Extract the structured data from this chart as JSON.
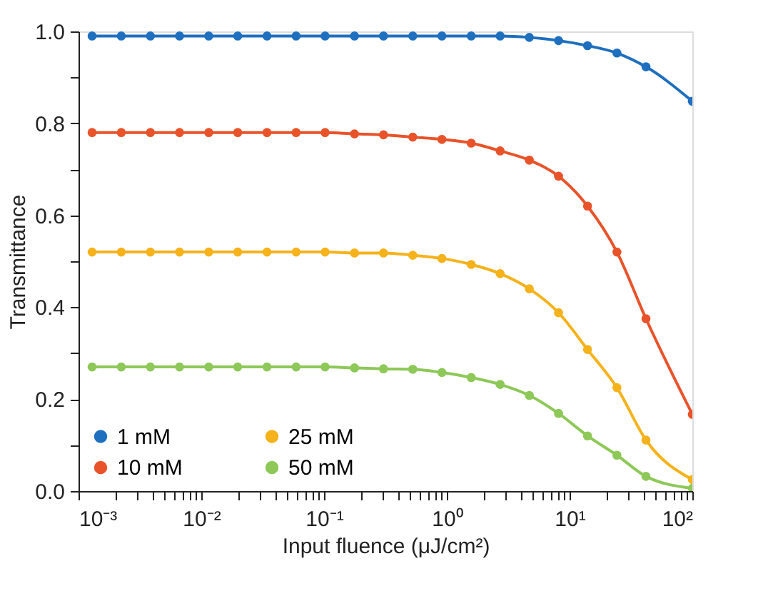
{
  "chart_data": {
    "type": "line",
    "xlabel": "Input fluence (μJ/cm²)",
    "ylabel": "Transmittance",
    "x": [
      0.00129,
      0.00223,
      0.00385,
      0.00665,
      0.0115,
      0.0198,
      0.0343,
      0.0592,
      0.102,
      0.177,
      0.305,
      0.528,
      0.912,
      1.58,
      2.72,
      4.7,
      8.13,
      14.0,
      24.3,
      41.9,
      100
    ],
    "series": [
      {
        "name": "1 mM",
        "color": "#1f6fbf",
        "values": [
          0.99,
          0.99,
          0.99,
          0.99,
          0.99,
          0.99,
          0.99,
          0.99,
          0.99,
          0.99,
          0.99,
          0.99,
          0.99,
          0.99,
          0.99,
          0.987,
          0.98,
          0.969,
          0.953,
          0.923,
          0.848
        ]
      },
      {
        "name": "10 mM",
        "color": "#e8532a",
        "values": [
          0.78,
          0.78,
          0.78,
          0.78,
          0.78,
          0.78,
          0.78,
          0.78,
          0.78,
          0.777,
          0.775,
          0.77,
          0.765,
          0.757,
          0.74,
          0.72,
          0.685,
          0.62,
          0.52,
          0.375,
          0.167
        ]
      },
      {
        "name": "25 mM",
        "color": "#f5b21b",
        "values": [
          0.52,
          0.52,
          0.52,
          0.52,
          0.52,
          0.52,
          0.52,
          0.52,
          0.52,
          0.518,
          0.518,
          0.513,
          0.506,
          0.493,
          0.473,
          0.44,
          0.388,
          0.308,
          0.225,
          0.111,
          0.025
        ]
      },
      {
        "name": "50 mM",
        "color": "#8dc858",
        "values": [
          0.27,
          0.27,
          0.27,
          0.27,
          0.27,
          0.27,
          0.27,
          0.27,
          0.27,
          0.268,
          0.266,
          0.265,
          0.258,
          0.247,
          0.232,
          0.208,
          0.169,
          0.12,
          0.078,
          0.032,
          0.006
        ]
      }
    ],
    "log": "x",
    "marker": "circle",
    "line_style": "solid",
    "grid": false,
    "legend": "bottom left",
    "xlim": [
      0.001,
      100
    ],
    "ylim": [
      0,
      1
    ],
    "xticks": [
      {
        "value": 0.001,
        "label": "10⁻³"
      },
      {
        "value": 0.002,
        "label": null
      },
      {
        "value": 0.003,
        "label": null
      },
      {
        "value": 0.004,
        "label": null
      },
      {
        "value": 0.005,
        "label": null
      },
      {
        "value": 0.006,
        "label": null
      },
      {
        "value": 0.007,
        "label": null
      },
      {
        "value": 0.008,
        "label": null
      },
      {
        "value": 0.009,
        "label": null
      },
      {
        "value": 0.01,
        "label": "10⁻²"
      },
      {
        "value": 0.02,
        "label": null
      },
      {
        "value": 0.03,
        "label": null
      },
      {
        "value": 0.04,
        "label": null
      },
      {
        "value": 0.05,
        "label": null
      },
      {
        "value": 0.06,
        "label": null
      },
      {
        "value": 0.07,
        "label": null
      },
      {
        "value": 0.08,
        "label": null
      },
      {
        "value": 0.09,
        "label": null
      },
      {
        "value": 0.1,
        "label": "10⁻¹"
      },
      {
        "value": 0.2,
        "label": null
      },
      {
        "value": 0.3,
        "label": null
      },
      {
        "value": 0.4,
        "label": null
      },
      {
        "value": 0.5,
        "label": null
      },
      {
        "value": 0.6,
        "label": null
      },
      {
        "value": 0.7,
        "label": null
      },
      {
        "value": 0.8,
        "label": null
      },
      {
        "value": 0.9,
        "label": null
      },
      {
        "value": 1,
        "label": "10⁰"
      },
      {
        "value": 2,
        "label": null
      },
      {
        "value": 3,
        "label": null
      },
      {
        "value": 4,
        "label": null
      },
      {
        "value": 5,
        "label": null
      },
      {
        "value": 6,
        "label": null
      },
      {
        "value": 7,
        "label": null
      },
      {
        "value": 8,
        "label": null
      },
      {
        "value": 9,
        "label": null
      },
      {
        "value": 10,
        "label": "10¹"
      },
      {
        "value": 20,
        "label": null
      },
      {
        "value": 30,
        "label": null
      },
      {
        "value": 40,
        "label": null
      },
      {
        "value": 50,
        "label": null
      },
      {
        "value": 60,
        "label": null
      },
      {
        "value": 70,
        "label": null
      },
      {
        "value": 80,
        "label": null
      },
      {
        "value": 90,
        "label": null
      },
      {
        "value": 100,
        "label": "10²"
      }
    ],
    "yticks": [
      {
        "value": 0,
        "label": "0.0"
      },
      {
        "value": 0.1,
        "label": null
      },
      {
        "value": 0.2,
        "label": "0.2"
      },
      {
        "value": 0.3,
        "label": null
      },
      {
        "value": 0.4,
        "label": "0.4"
      },
      {
        "value": 0.5,
        "label": null
      },
      {
        "value": 0.6,
        "label": "0.6"
      },
      {
        "value": 0.7,
        "label": null
      },
      {
        "value": 0.8,
        "label": "0.8"
      },
      {
        "value": 0.9,
        "label": null
      },
      {
        "value": 1,
        "label": "1.0"
      }
    ]
  }
}
